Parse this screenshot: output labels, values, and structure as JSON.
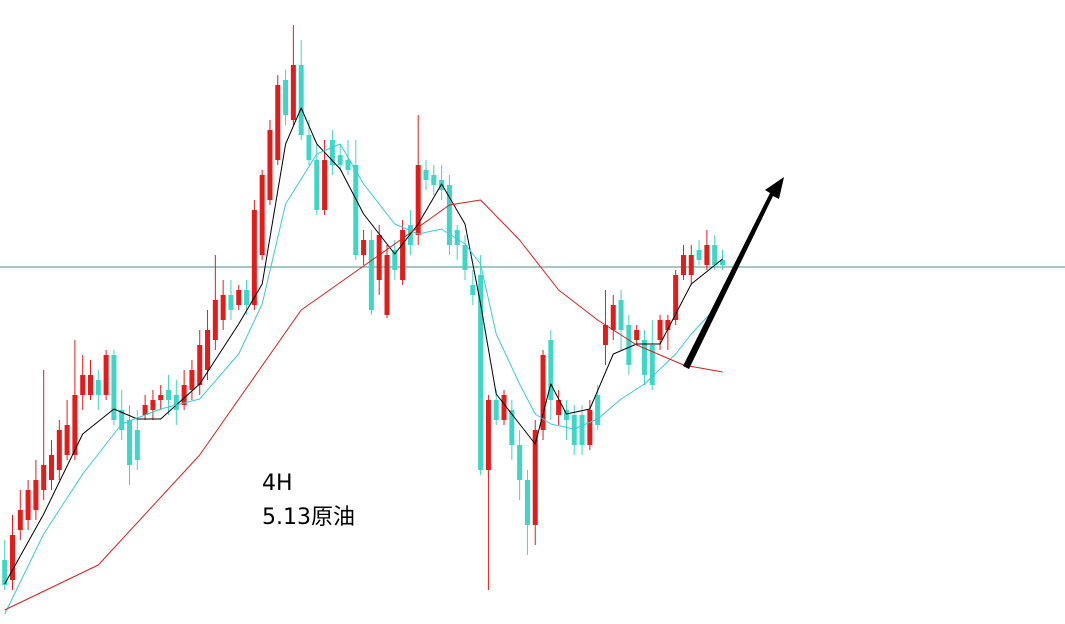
{
  "chart_data": {
    "type": "candlestick",
    "annotations": [
      "4H",
      "5.13原油"
    ],
    "ylim": [
      0,
      624
    ],
    "xlim": [
      -0.6,
      135.9
    ],
    "up_color": "#e41b1b",
    "down_color": "#3ed6c8",
    "open": [
      64,
      44,
      94,
      104,
      114,
      134,
      144,
      154,
      169,
      169,
      229,
      229,
      244,
      229,
      269,
      214,
      204,
      194,
      209,
      214,
      224,
      234,
      229,
      219,
      234,
      239,
      254,
      284,
      304,
      329,
      319,
      334,
      319,
      369,
      424,
      464,
      544,
      504,
      559,
      489,
      464,
      414,
      484,
      469,
      464,
      459,
      369,
      384,
      344,
      309,
      374,
      344,
      399,
      389,
      454,
      449,
      444,
      439,
      394,
      379,
      339,
      349,
      154,
      224,
      204,
      214,
      179,
      144,
      99,
      194,
      284,
      209,
      214,
      209,
      209,
      179,
      229,
      279,
      294,
      324,
      299,
      284,
      284,
      279,
      284,
      294,
      304,
      349,
      349,
      374,
      359,
      379,
      364
    ],
    "high": [
      84,
      109,
      134,
      144,
      164,
      254,
      184,
      204,
      224,
      284,
      269,
      264,
      254,
      274,
      274,
      234,
      219,
      214,
      229,
      234,
      239,
      249,
      244,
      254,
      264,
      294,
      314,
      369,
      344,
      344,
      339,
      344,
      424,
      454,
      504,
      549,
      554,
      599,
      584,
      504,
      479,
      484,
      494,
      479,
      484,
      484,
      394,
      394,
      399,
      379,
      384,
      404,
      414,
      509,
      464,
      459,
      459,
      449,
      399,
      389,
      354,
      369,
      229,
      234,
      234,
      224,
      194,
      154,
      204,
      274,
      294,
      234,
      224,
      219,
      219,
      224,
      239,
      334,
      329,
      334,
      309,
      299,
      294,
      304,
      309,
      309,
      354,
      379,
      379,
      384,
      394,
      389,
      374
    ],
    "low": [
      34,
      34,
      84,
      94,
      104,
      124,
      134,
      144,
      164,
      164,
      214,
      224,
      214,
      224,
      199,
      184,
      139,
      154,
      204,
      204,
      214,
      209,
      199,
      214,
      224,
      229,
      244,
      274,
      294,
      304,
      314,
      309,
      314,
      364,
      419,
      459,
      499,
      499,
      484,
      459,
      409,
      409,
      449,
      454,
      449,
      364,
      359,
      309,
      329,
      306,
      344,
      339,
      369,
      379,
      434,
      429,
      424,
      369,
      364,
      344,
      319,
      149,
      34,
      199,
      199,
      164,
      124,
      69,
      79,
      184,
      204,
      199,
      184,
      169,
      169,
      174,
      194,
      259,
      284,
      274,
      249,
      279,
      239,
      234,
      274,
      274,
      299,
      344,
      339,
      359,
      354,
      354,
      354
    ],
    "close": [
      39,
      89,
      114,
      134,
      144,
      159,
      169,
      194,
      199,
      229,
      249,
      249,
      229,
      269,
      204,
      194,
      159,
      164,
      219,
      224,
      229,
      224,
      214,
      239,
      254,
      279,
      294,
      324,
      329,
      314,
      334,
      319,
      414,
      449,
      494,
      539,
      509,
      559,
      489,
      464,
      414,
      464,
      459,
      459,
      454,
      369,
      384,
      314,
      389,
      369,
      354,
      394,
      379,
      459,
      444,
      439,
      434,
      379,
      379,
      354,
      329,
      154,
      224,
      204,
      229,
      179,
      144,
      99,
      194,
      269,
      224,
      224,
      204,
      179,
      179,
      214,
      199,
      299,
      319,
      294,
      259,
      294,
      249,
      239,
      304,
      304,
      349,
      369,
      369,
      364,
      379,
      359,
      359
    ],
    "series": [
      {
        "color": "#000000",
        "x": [
          0,
          5,
          10,
          14,
          17,
          20,
          25,
          30,
          33,
          36,
          38,
          40,
          43,
          46,
          50,
          53,
          56,
          59,
          61,
          63,
          66,
          68,
          70,
          72,
          75,
          78,
          81,
          84,
          88,
          92
        ],
        "values": [
          40,
          110,
          190,
          215,
          205,
          205,
          240,
          300,
          340,
          480,
          516,
          480,
          455,
          410,
          370,
          400,
          440,
          400,
          320,
          230,
          200,
          180,
          240,
          210,
          215,
          270,
          280,
          280,
          340,
          365
        ]
      },
      {
        "color": "#3cc8d8",
        "x": [
          0,
          5,
          10,
          15,
          20,
          25,
          30,
          33,
          36,
          40,
          43,
          46,
          50,
          53,
          56,
          59,
          61,
          63,
          66,
          68,
          70,
          73,
          76,
          79,
          82,
          86,
          88,
          91
        ],
        "values": [
          10,
          90,
          150,
          200,
          215,
          225,
          270,
          320,
          420,
          470,
          480,
          440,
          400,
          390,
          395,
          380,
          360,
          290,
          240,
          210,
          200,
          195,
          205,
          225,
          240,
          270,
          290,
          315
        ]
      },
      {
        "color": "#d42020",
        "x": [
          0,
          12,
          25,
          38,
          48,
          57,
          61,
          66,
          71,
          76,
          81,
          87,
          92
        ],
        "values": [
          14,
          59,
          169,
          314,
          369,
          419,
          424,
          384,
          334,
          304,
          279,
          259,
          252
        ]
      }
    ],
    "hline": {
      "value": 357,
      "color": "#4a8f8a"
    }
  }
}
